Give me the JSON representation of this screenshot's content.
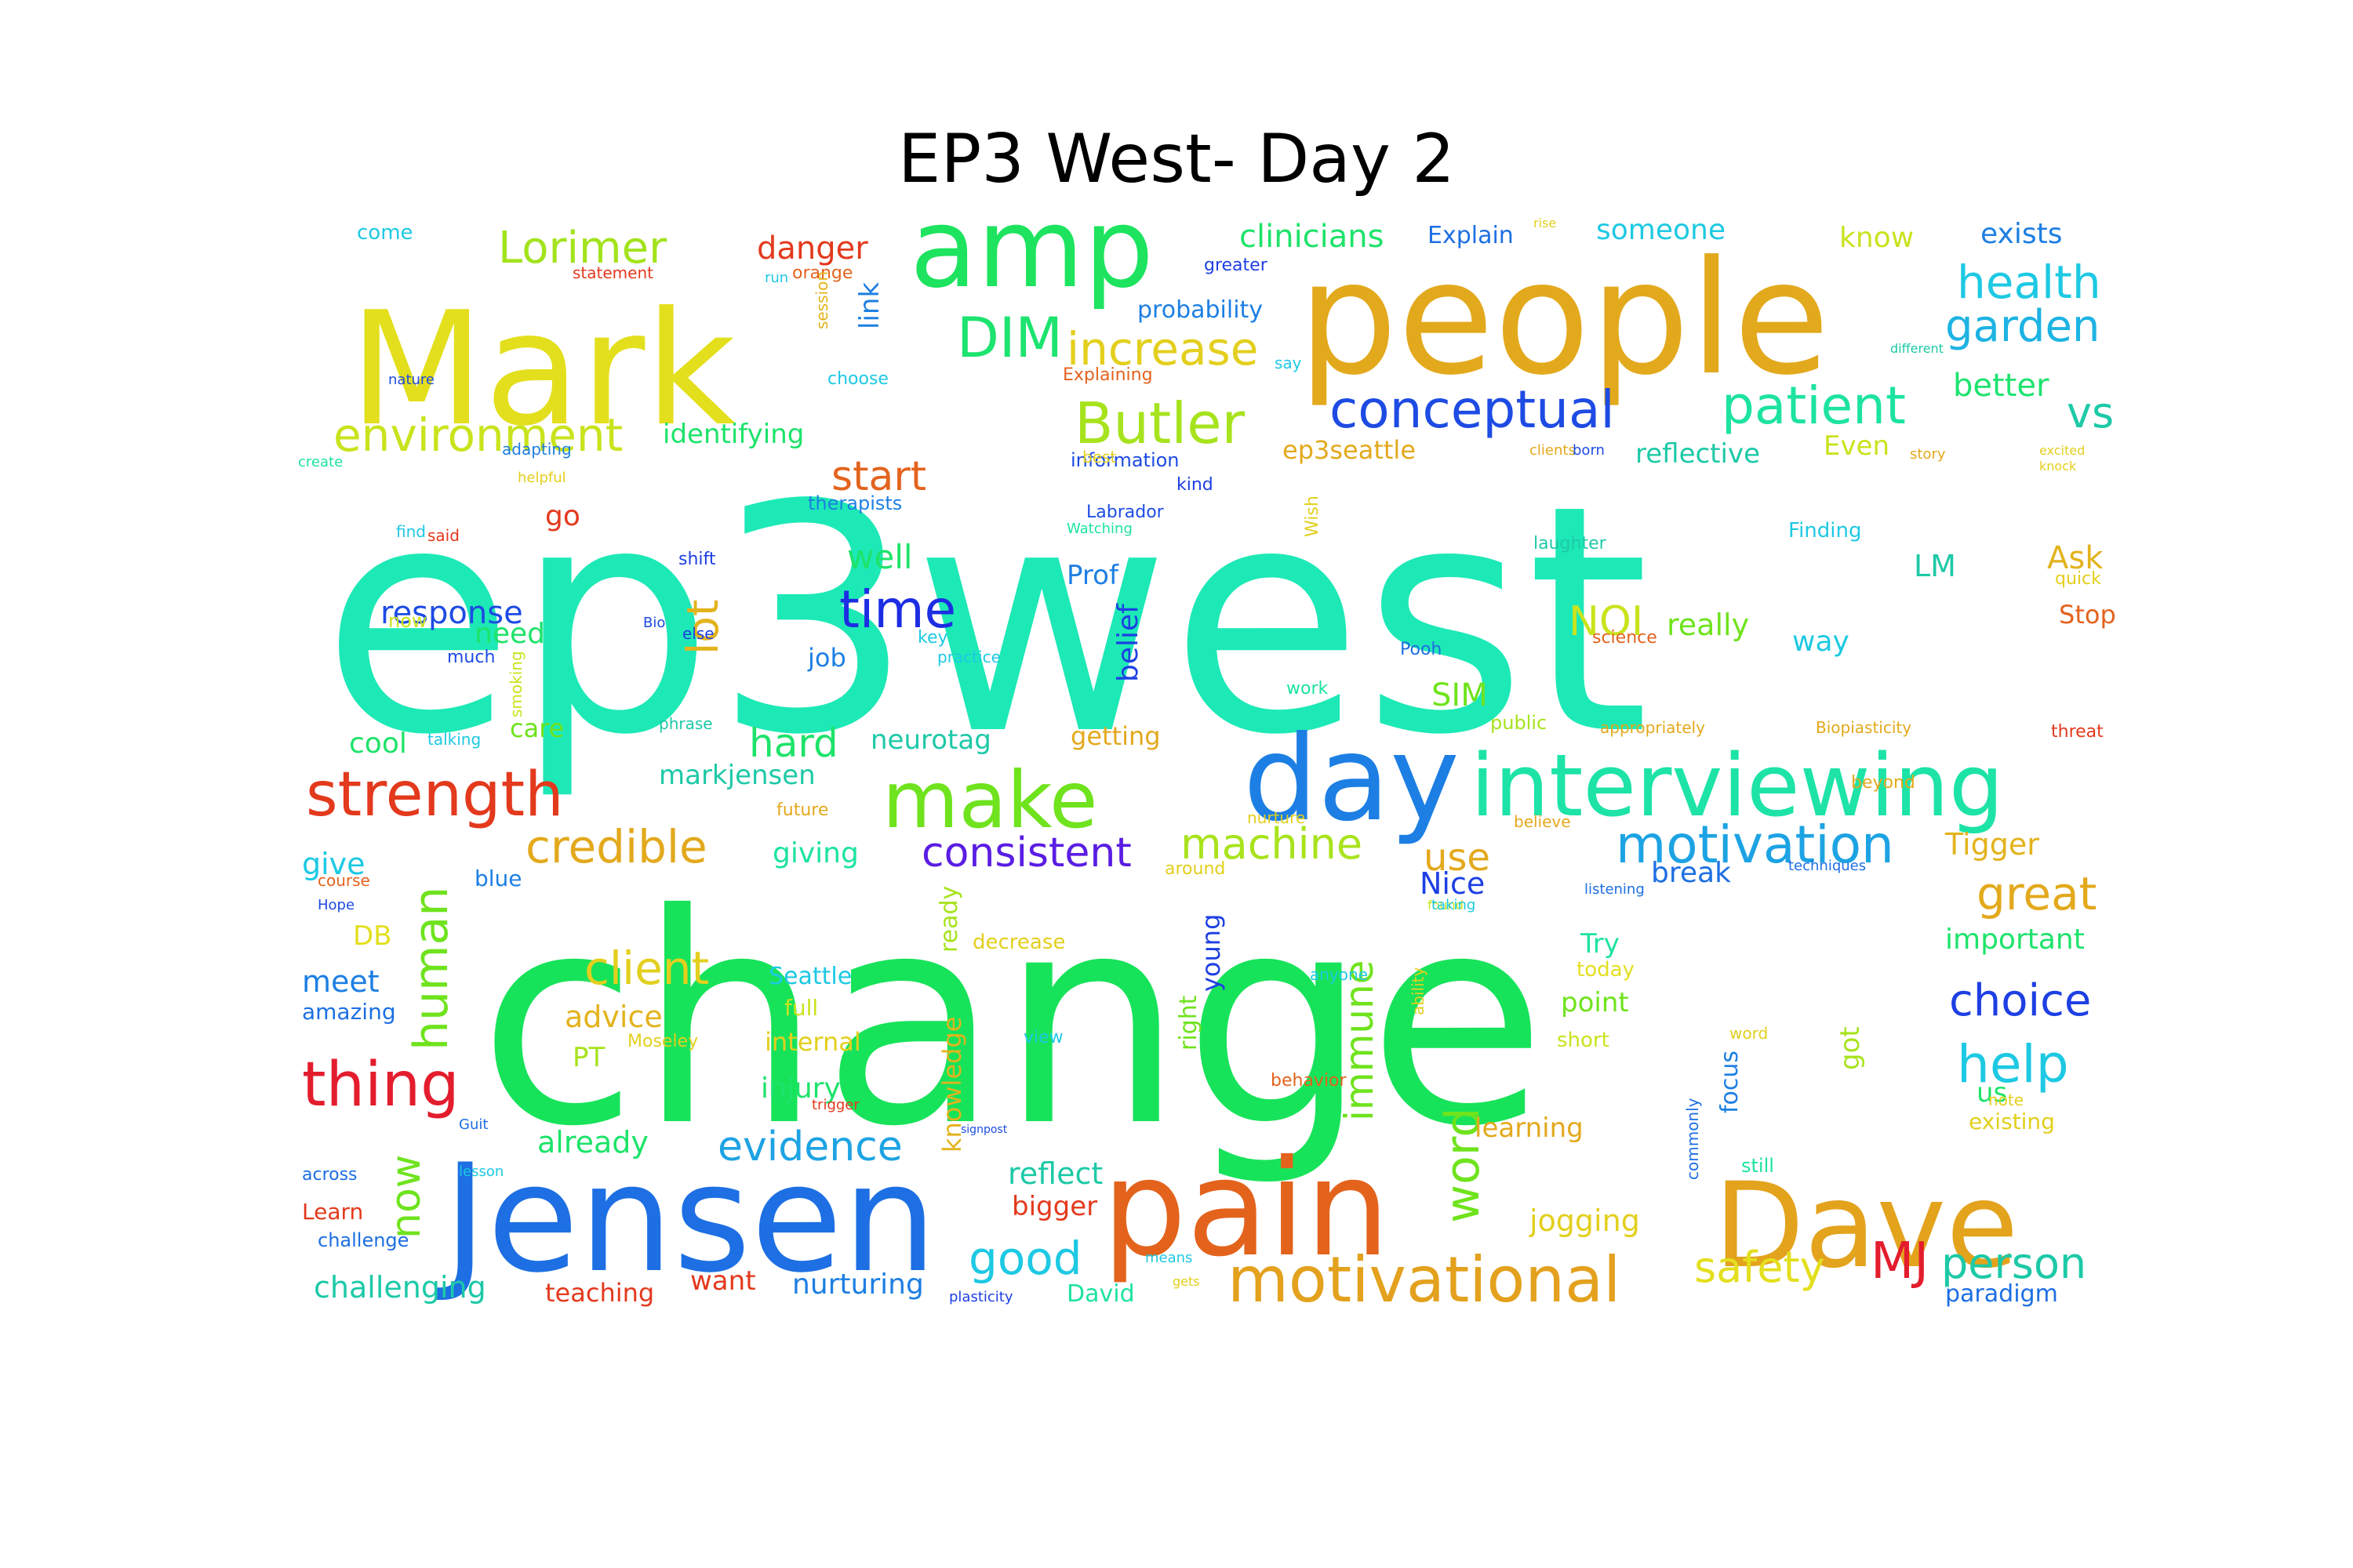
{
  "title": "EP3 West- Day 2",
  "words": [
    {
      "text": "ep3west",
      "color": "#1de9b6"
    },
    {
      "text": "change",
      "color": "#17e35a"
    },
    {
      "text": "people",
      "color": "#e3a91d"
    },
    {
      "text": "Mark",
      "color": "#e3df1d"
    },
    {
      "text": "amp",
      "color": "#1de35f"
    },
    {
      "text": "Jensen",
      "color": "#1d6fe3"
    },
    {
      "text": "pain",
      "color": "#e3631d"
    },
    {
      "text": "Dave",
      "color": "#e3a31d"
    },
    {
      "text": "day",
      "color": "#1d7fe3"
    },
    {
      "text": "interviewing",
      "color": "#1de3a7"
    },
    {
      "text": "make",
      "color": "#6fe31d"
    },
    {
      "text": "motivational",
      "color": "#e3a11d"
    },
    {
      "text": "strength",
      "color": "#e3391d"
    },
    {
      "text": "thing",
      "color": "#e31d2d"
    },
    {
      "text": "motivation",
      "color": "#1da3e3"
    },
    {
      "text": "conceptual",
      "color": "#1d4be3"
    },
    {
      "text": "patient",
      "color": "#1de3a0"
    },
    {
      "text": "Butler",
      "color": "#a7e31d"
    },
    {
      "text": "environment",
      "color": "#c9e31d"
    },
    {
      "text": "Lorimer",
      "color": "#a3e31d"
    },
    {
      "text": "DIM",
      "color": "#1de36f"
    },
    {
      "text": "increase",
      "color": "#e3cf1d"
    },
    {
      "text": "health",
      "color": "#1dc9e3"
    },
    {
      "text": "garden",
      "color": "#1db3e3"
    },
    {
      "text": "credible",
      "color": "#e3a91d"
    },
    {
      "text": "human",
      "color": "#6fe31d"
    },
    {
      "text": "client",
      "color": "#e3cf1d"
    },
    {
      "text": "time",
      "color": "#1d2de3"
    },
    {
      "text": "lot",
      "color": "#e3b31d"
    },
    {
      "text": "start",
      "color": "#e3631d"
    },
    {
      "text": "hard",
      "color": "#1de36a"
    },
    {
      "text": "consistent",
      "color": "#5a1de3"
    },
    {
      "text": "machine",
      "color": "#a9e31d"
    },
    {
      "text": "great",
      "color": "#e3a91d"
    },
    {
      "text": "help",
      "color": "#1dc9e3"
    },
    {
      "text": "choice",
      "color": "#1d3fe3"
    },
    {
      "text": "evidence",
      "color": "#1da3e3"
    },
    {
      "text": "good",
      "color": "#1dc9e3"
    },
    {
      "text": "person",
      "color": "#1dc9a7"
    },
    {
      "text": "MJ",
      "color": "#e31d2d"
    },
    {
      "text": "safety",
      "color": "#e3df1d"
    },
    {
      "text": "word",
      "color": "#6fe31d"
    },
    {
      "text": "now",
      "color": "#6fe31d"
    },
    {
      "text": "immune",
      "color": "#6fe31d"
    },
    {
      "text": "vs",
      "color": "#1dc9a7"
    },
    {
      "text": "better",
      "color": "#1de36f"
    },
    {
      "text": "NOI",
      "color": "#c9e31d"
    },
    {
      "text": "use",
      "color": "#e3a91d"
    },
    {
      "text": "Nice",
      "color": "#1d3fe3"
    },
    {
      "text": "Tigger",
      "color": "#e3b31d"
    },
    {
      "text": "break",
      "color": "#1d6fe3"
    },
    {
      "text": "response",
      "color": "#1d4be3"
    },
    {
      "text": "clinicians",
      "color": "#1de36a"
    },
    {
      "text": "Explain",
      "color": "#1d6fe3"
    },
    {
      "text": "someone",
      "color": "#1dc9e3"
    },
    {
      "text": "know",
      "color": "#c9e31d"
    },
    {
      "text": "exists",
      "color": "#1d7fe3"
    },
    {
      "text": "danger",
      "color": "#e3391d"
    },
    {
      "text": "identifying",
      "color": "#1de36a"
    },
    {
      "text": "ep3seattle",
      "color": "#e3a91d"
    },
    {
      "text": "reflective",
      "color": "#1dc9a7"
    },
    {
      "text": "Even",
      "color": "#c9e31d"
    },
    {
      "text": "well",
      "color": "#1de36a"
    },
    {
      "text": "really",
      "color": "#6fe31d"
    },
    {
      "text": "way",
      "color": "#1dc9e3"
    },
    {
      "text": "LM",
      "color": "#1dc9a7"
    },
    {
      "text": "Ask",
      "color": "#e3b31d"
    },
    {
      "text": "Stop",
      "color": "#e3631d"
    },
    {
      "text": "go",
      "color": "#e3391d"
    },
    {
      "text": "need",
      "color": "#1de36a"
    },
    {
      "text": "job",
      "color": "#1d7fe3"
    },
    {
      "text": "Prof",
      "color": "#1d7fe3"
    },
    {
      "text": "belief",
      "color": "#1d3fe3"
    },
    {
      "text": "SIM",
      "color": "#6fe31d"
    },
    {
      "text": "cool",
      "color": "#1de36a"
    },
    {
      "text": "care",
      "color": "#6fe31d"
    },
    {
      "text": "neurotag",
      "color": "#1dc9a7"
    },
    {
      "text": "getting",
      "color": "#e3a91d"
    },
    {
      "text": "markjensen",
      "color": "#1dc9a7"
    },
    {
      "text": "give",
      "color": "#1dc9e3"
    },
    {
      "text": "giving",
      "color": "#1de3a0"
    },
    {
      "text": "DB",
      "color": "#e3df1d"
    },
    {
      "text": "meet",
      "color": "#1d7fe3"
    },
    {
      "text": "amazing",
      "color": "#1d6fe3"
    },
    {
      "text": "advice",
      "color": "#e3b31d"
    },
    {
      "text": "PT",
      "color": "#a7e31d"
    },
    {
      "text": "already",
      "color": "#1de36a"
    },
    {
      "text": "injury",
      "color": "#1de36a"
    },
    {
      "text": "internal",
      "color": "#e3cf1d"
    },
    {
      "text": "Seattle",
      "color": "#1dc9e3"
    },
    {
      "text": "full",
      "color": "#c9e31d"
    },
    {
      "text": "knowledge",
      "color": "#e3b31d"
    },
    {
      "text": "ready",
      "color": "#a7e31d"
    },
    {
      "text": "young",
      "color": "#1d3fe3"
    },
    {
      "text": "right",
      "color": "#6fe31d"
    },
    {
      "text": "decrease",
      "color": "#e3cf1d"
    },
    {
      "text": "Try",
      "color": "#1de3a0"
    },
    {
      "text": "today",
      "color": "#e3df1d"
    },
    {
      "text": "point",
      "color": "#6fe31d"
    },
    {
      "text": "short",
      "color": "#c9e31d"
    },
    {
      "text": "focus",
      "color": "#1d7fe3"
    },
    {
      "text": "got",
      "color": "#a7e31d"
    },
    {
      "text": "important",
      "color": "#1de36a"
    },
    {
      "text": "us",
      "color": "#1de36a"
    },
    {
      "text": "existing",
      "color": "#e3cf1d"
    },
    {
      "text": "learning",
      "color": "#e3a91d"
    },
    {
      "text": "jogging",
      "color": "#e3cf1d"
    },
    {
      "text": "reflect",
      "color": "#1dc9a7"
    },
    {
      "text": "bigger",
      "color": "#e3391d"
    },
    {
      "text": "want",
      "color": "#e3391d"
    },
    {
      "text": "nurturing",
      "color": "#1d7fe3"
    },
    {
      "text": "David",
      "color": "#1de3a0"
    },
    {
      "text": "paradigm",
      "color": "#1d6fe3"
    },
    {
      "text": "challenging",
      "color": "#1dc9a7"
    },
    {
      "text": "teaching",
      "color": "#e3391d"
    },
    {
      "text": "Learn",
      "color": "#e3391d"
    },
    {
      "text": "challenge",
      "color": "#1d6fe3"
    },
    {
      "text": "probability",
      "color": "#1d7fe3"
    },
    {
      "text": "link",
      "color": "#1d7fe3"
    },
    {
      "text": "come",
      "color": "#1dc9e3"
    },
    {
      "text": "statement",
      "color": "#e3391d"
    },
    {
      "text": "orange",
      "color": "#e3631d"
    },
    {
      "text": "Explaining",
      "color": "#e3631d"
    },
    {
      "text": "greater",
      "color": "#1d3fe3"
    },
    {
      "text": "information",
      "color": "#1d4be3"
    },
    {
      "text": "therapists",
      "color": "#1d7fe3"
    },
    {
      "text": "shift",
      "color": "#1d3fe3"
    },
    {
      "text": "Finding",
      "color": "#1dc9e3"
    },
    {
      "text": "laughter",
      "color": "#1dc9a7"
    },
    {
      "text": "clients",
      "color": "#e3a91d"
    },
    {
      "text": "story",
      "color": "#e3a91d"
    },
    {
      "text": "knock",
      "color": "#e3cf1d"
    },
    {
      "text": "excited",
      "color": "#e3cf1d"
    },
    {
      "text": "quick",
      "color": "#e3cf1d"
    },
    {
      "text": "threat",
      "color": "#e3391d"
    },
    {
      "text": "Biopiasticity",
      "color": "#e3a91d"
    },
    {
      "text": "appropriately",
      "color": "#e3a91d"
    },
    {
      "text": "public",
      "color": "#a7e31d"
    },
    {
      "text": "beyond",
      "color": "#e3a91d"
    },
    {
      "text": "note",
      "color": "#e3cf1d"
    },
    {
      "text": "techniques",
      "color": "#1d6fe3"
    },
    {
      "text": "believe",
      "color": "#e3a91d"
    },
    {
      "text": "nurture",
      "color": "#e3cf1d"
    },
    {
      "text": "listening",
      "color": "#1d6fe3"
    },
    {
      "text": "found",
      "color": "#c9e31d"
    },
    {
      "text": "work",
      "color": "#1de3a0"
    },
    {
      "text": "Pooh",
      "color": "#1d6fe3"
    },
    {
      "text": "science",
      "color": "#e3631d"
    },
    {
      "text": "Wish",
      "color": "#e3cf1d"
    },
    {
      "text": "kind",
      "color": "#1d3fe3"
    },
    {
      "text": "best",
      "color": "#e3cf1d"
    },
    {
      "text": "Labrador",
      "color": "#1d4be3"
    },
    {
      "text": "Watching",
      "color": "#1de3a0"
    },
    {
      "text": "key",
      "color": "#1dc9e3"
    },
    {
      "text": "practice",
      "color": "#1dc9e3"
    },
    {
      "text": "phrase",
      "color": "#1dc9a7"
    },
    {
      "text": "future",
      "color": "#e3a91d"
    },
    {
      "text": "around",
      "color": "#e3cf1d"
    },
    {
      "text": "taking",
      "color": "#1dc9e3"
    },
    {
      "text": "anyone",
      "color": "#1dc9e3"
    },
    {
      "text": "view",
      "color": "#1dc9e3"
    },
    {
      "text": "behavior",
      "color": "#e3631d"
    },
    {
      "text": "ability",
      "color": "#e3cf1d"
    },
    {
      "text": "word",
      "color": "#e3cf1d"
    },
    {
      "text": "still",
      "color": "#1de3a0"
    },
    {
      "text": "commonly",
      "color": "#1d6fe3"
    },
    {
      "text": "means",
      "color": "#1dc9e3"
    },
    {
      "text": "gets",
      "color": "#e3cf1d"
    },
    {
      "text": "plasticity",
      "color": "#1d3fe3"
    },
    {
      "text": "signpost",
      "color": "#1d4be3"
    },
    {
      "text": "trigger",
      "color": "#e3391d"
    },
    {
      "text": "Moseley",
      "color": "#e3cf1d"
    },
    {
      "text": "Guit",
      "color": "#1d6fe3"
    },
    {
      "text": "lesson",
      "color": "#1dc9e3"
    },
    {
      "text": "across",
      "color": "#1d6fe3"
    },
    {
      "text": "Hope",
      "color": "#1d4be3"
    },
    {
      "text": "course",
      "color": "#e3631d"
    },
    {
      "text": "blue",
      "color": "#1d7fe3"
    },
    {
      "text": "talking",
      "color": "#1dc9e3"
    },
    {
      "text": "smoking",
      "color": "#c9e31d"
    },
    {
      "text": "much",
      "color": "#1d4be3"
    },
    {
      "text": "now",
      "color": "#c9e31d"
    },
    {
      "text": "Bio",
      "color": "#1d4be3"
    },
    {
      "text": "said",
      "color": "#e3391d"
    },
    {
      "text": "find",
      "color": "#1dc9e3"
    },
    {
      "text": "helpful",
      "color": "#e3cf1d"
    },
    {
      "text": "create",
      "color": "#1de3a0"
    },
    {
      "text": "adapting",
      "color": "#1d7fe3"
    },
    {
      "text": "nature",
      "color": "#1d4be3"
    },
    {
      "text": "choose",
      "color": "#1dc9e3"
    },
    {
      "text": "session",
      "color": "#e3b31d"
    },
    {
      "text": "run",
      "color": "#1dc9e3"
    },
    {
      "text": "say",
      "color": "#1dc9e3"
    },
    {
      "text": "rise",
      "color": "#e3cf1d"
    },
    {
      "text": "different",
      "color": "#1dc9a7"
    },
    {
      "text": "born",
      "color": "#1d4be3"
    },
    {
      "text": "else",
      "color": "#1d3fe3"
    },
    {
      "text": "shift",
      "color": "#c9e31d"
    }
  ]
}
